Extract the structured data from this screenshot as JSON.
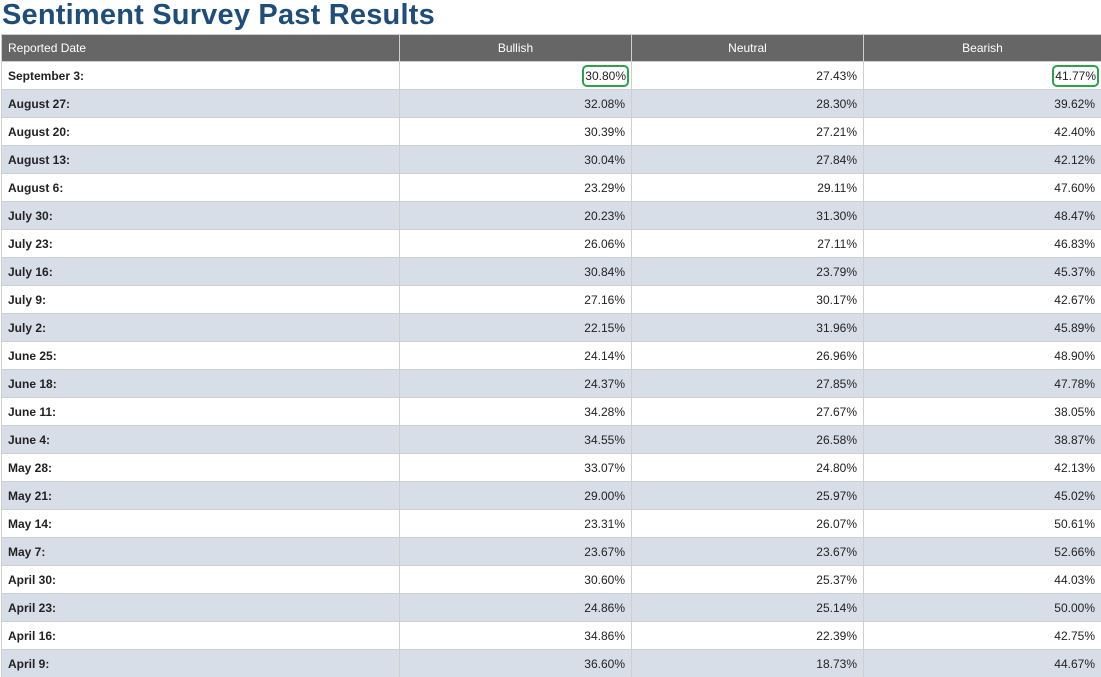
{
  "page": {
    "title": "Sentiment Survey Past Results"
  },
  "table": {
    "headers": {
      "date": "Reported Date",
      "bullish": "Bullish",
      "neutral": "Neutral",
      "bearish": "Bearish"
    },
    "highlight_color": "#2aa44a",
    "header_bg": "#666666",
    "alt_row_bg": "#d8dee8",
    "rows": [
      {
        "date": "September 3:",
        "bullish": "30.80%",
        "neutral": "27.43%",
        "bearish": "41.77%",
        "highlight": [
          "bullish",
          "bearish"
        ]
      },
      {
        "date": "August 27:",
        "bullish": "32.08%",
        "neutral": "28.30%",
        "bearish": "39.62%"
      },
      {
        "date": "August 20:",
        "bullish": "30.39%",
        "neutral": "27.21%",
        "bearish": "42.40%"
      },
      {
        "date": "August 13:",
        "bullish": "30.04%",
        "neutral": "27.84%",
        "bearish": "42.12%"
      },
      {
        "date": "August 6:",
        "bullish": "23.29%",
        "neutral": "29.11%",
        "bearish": "47.60%"
      },
      {
        "date": "July 30:",
        "bullish": "20.23%",
        "neutral": "31.30%",
        "bearish": "48.47%"
      },
      {
        "date": "July 23:",
        "bullish": "26.06%",
        "neutral": "27.11%",
        "bearish": "46.83%"
      },
      {
        "date": "July 16:",
        "bullish": "30.84%",
        "neutral": "23.79%",
        "bearish": "45.37%"
      },
      {
        "date": "July 9:",
        "bullish": "27.16%",
        "neutral": "30.17%",
        "bearish": "42.67%"
      },
      {
        "date": "July 2:",
        "bullish": "22.15%",
        "neutral": "31.96%",
        "bearish": "45.89%"
      },
      {
        "date": "June 25:",
        "bullish": "24.14%",
        "neutral": "26.96%",
        "bearish": "48.90%"
      },
      {
        "date": "June 18:",
        "bullish": "24.37%",
        "neutral": "27.85%",
        "bearish": "47.78%"
      },
      {
        "date": "June 11:",
        "bullish": "34.28%",
        "neutral": "27.67%",
        "bearish": "38.05%"
      },
      {
        "date": "June 4:",
        "bullish": "34.55%",
        "neutral": "26.58%",
        "bearish": "38.87%"
      },
      {
        "date": "May 28:",
        "bullish": "33.07%",
        "neutral": "24.80%",
        "bearish": "42.13%"
      },
      {
        "date": "May 21:",
        "bullish": "29.00%",
        "neutral": "25.97%",
        "bearish": "45.02%"
      },
      {
        "date": "May 14:",
        "bullish": "23.31%",
        "neutral": "26.07%",
        "bearish": "50.61%"
      },
      {
        "date": "May 7:",
        "bullish": "23.67%",
        "neutral": "23.67%",
        "bearish": "52.66%"
      },
      {
        "date": "April 30:",
        "bullish": "30.60%",
        "neutral": "25.37%",
        "bearish": "44.03%"
      },
      {
        "date": "April 23:",
        "bullish": "24.86%",
        "neutral": "25.14%",
        "bearish": "50.00%"
      },
      {
        "date": "April 16:",
        "bullish": "34.86%",
        "neutral": "22.39%",
        "bearish": "42.75%"
      },
      {
        "date": "April 9:",
        "bullish": "36.60%",
        "neutral": "18.73%",
        "bearish": "44.67%"
      }
    ]
  }
}
